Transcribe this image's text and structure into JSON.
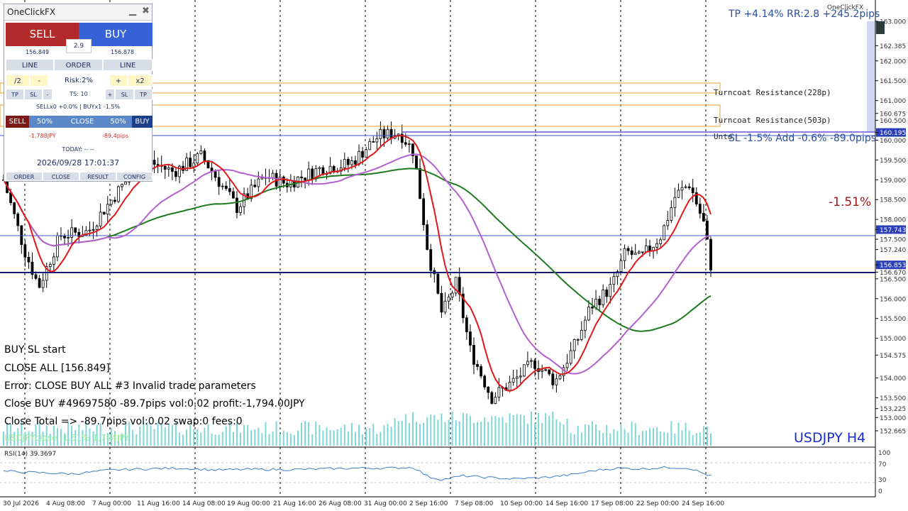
{
  "panel": {
    "title": "OneClickFX",
    "sell_label": "SELL",
    "buy_label": "BUY",
    "spread": "2.9",
    "sell_price": "156.849",
    "buy_price": "156.878",
    "line_left": "LINE",
    "order_label": "ORDER",
    "line_right": "LINE",
    "half_label": "/2",
    "minus_label": "-",
    "risk_label": "Risk:2%",
    "plus_label": "+",
    "double_label": "x2",
    "tp_left": "TP",
    "sl_left": "SL",
    "minus_small": "-",
    "ts_label": "TS: 10",
    "plus_small": "+",
    "sl_right": "SL",
    "tp_right": "TP",
    "positions_info": "SELLx0 +0.0% | BUYx1 -1.5%",
    "close_sell": "SELL",
    "close_50_left": "50%",
    "close_label": "CLOSE",
    "close_50_right": "50%",
    "close_buy": "BUY",
    "pl_left": "-1,788JPY",
    "pl_right": "-89.4pips",
    "today": "TODAY: -- --",
    "datetime": "2026/09/28  17:01:37",
    "tab_order": "ORDER",
    "tab_close": "CLOSE",
    "tab_result": "RESULT",
    "tab_config": "CONFIG"
  },
  "overlays": {
    "tp_info": "TP +4.14% RR:2.8 +245.2pips",
    "sl_info": "SL -1.5% Add -0.6% -89.0pips",
    "percent_change": "-1.51%",
    "symbol_tf": "USDJPY H4",
    "brand_small": "OneClickFX",
    "resistance_1": "Turncoat Resistance(228p)",
    "resistance_2": "Turncoat Resistance(503p)",
    "resistance_3": "Unto",
    "ghost_text": "USDJPYclose -1.51% 1,794JPY",
    "rsi_label": "RSI(14) 39.3697"
  },
  "log": [
    "BUY SL start",
    "CLOSE ALL [156.849]",
    "Error: CLOSE BUY ALL #3 Invalid trade parameters",
    "Close BUY #49697580 -89.7pips vol:0.02 profit:-1,794.00JPY",
    "Close Total => -89.7pips vol:0.02 swap:0 fees:0"
  ],
  "price_axis": [
    {
      "price": 163.0,
      "label": "163.000",
      "style": "normal"
    },
    {
      "price": 162.385,
      "label": "162.385",
      "style": "normal"
    },
    {
      "price": 162.0,
      "label": "162.000",
      "style": "normal"
    },
    {
      "price": 161.5,
      "label": "161.500",
      "style": "normal"
    },
    {
      "price": 161.0,
      "label": "161.000",
      "style": "normal"
    },
    {
      "price": 160.675,
      "label": "160.675",
      "style": "normal"
    },
    {
      "price": 160.5,
      "label": "160.500",
      "style": "normal"
    },
    {
      "price": 160.195,
      "label": "160.195",
      "style": "blue"
    },
    {
      "price": 160.0,
      "label": "160.000",
      "style": "normal"
    },
    {
      "price": 159.5,
      "label": "159.500",
      "style": "normal"
    },
    {
      "price": 159.0,
      "label": "159.000",
      "style": "normal"
    },
    {
      "price": 158.5,
      "label": "158.500",
      "style": "normal"
    },
    {
      "price": 158.0,
      "label": "158.000",
      "style": "normal"
    },
    {
      "price": 157.743,
      "label": "157.743",
      "style": "blue"
    },
    {
      "price": 157.5,
      "label": "157.500",
      "style": "normal"
    },
    {
      "price": 157.24,
      "label": "157.240",
      "style": "normal"
    },
    {
      "price": 156.853,
      "label": "156.853",
      "style": "blue"
    },
    {
      "price": 156.5,
      "label": "156.500",
      "style": "normal"
    },
    {
      "price": 156.67,
      "label": "156.670",
      "style": "normal"
    },
    {
      "price": 156.0,
      "label": "156.000",
      "style": "normal"
    },
    {
      "price": 155.5,
      "label": "155.500",
      "style": "normal"
    },
    {
      "price": 155.0,
      "label": "155.000",
      "style": "normal"
    },
    {
      "price": 154.575,
      "label": "154.575",
      "style": "normal"
    },
    {
      "price": 154.0,
      "label": "154.000",
      "style": "normal"
    },
    {
      "price": 153.5,
      "label": "153.500",
      "style": "normal"
    },
    {
      "price": 153.225,
      "label": "153.225",
      "style": "normal"
    },
    {
      "price": 153.0,
      "label": "153.000",
      "style": "normal"
    },
    {
      "price": 152.665,
      "label": "152.665",
      "style": "normal"
    }
  ],
  "rsi_axis": [
    "100",
    "70",
    "30",
    "0"
  ],
  "time_axis": [
    "30 Jul 2026",
    "4 Aug 08:00",
    "7 Aug 00:00",
    "11 Aug 16:00",
    "14 Aug 08:00",
    "19 Aug 00:00",
    "21 Aug 16:00",
    "26 Aug 08:00",
    "31 Aug 00:00",
    "2 Sep 16:00",
    "7 Sep 08:00",
    "10 Sep 00:00",
    "14 Sep 16:00",
    "17 Sep 08:00",
    "22 Sep 00:00",
    "24 Sep 16:00"
  ],
  "colors": {
    "sell": "#b22a2a",
    "buy": "#3663d8",
    "ma_red": "#e01818",
    "ma_green": "#1e7a1e",
    "ma_purple": "#b45fd0",
    "volume": "#7fd6d6",
    "rsi": "#3a7ec8",
    "resistance": "#e8a030"
  },
  "chart_data": {
    "type": "candlestick",
    "symbol": "USDJPY",
    "timeframe": "H4",
    "ylim": [
      152.665,
      163.0
    ],
    "levels": {
      "entry": 157.743,
      "current": 156.853,
      "upper": 160.195
    },
    "close_path": [
      [
        0,
        159.0
      ],
      [
        0.03,
        157.2
      ],
      [
        0.05,
        156.3
      ],
      [
        0.08,
        157.6
      ],
      [
        0.12,
        157.7
      ],
      [
        0.14,
        158.2
      ],
      [
        0.17,
        158.9
      ],
      [
        0.2,
        159.5
      ],
      [
        0.24,
        159.2
      ],
      [
        0.28,
        159.6
      ],
      [
        0.33,
        158.3
      ],
      [
        0.37,
        159.1
      ],
      [
        0.4,
        158.9
      ],
      [
        0.45,
        159.3
      ],
      [
        0.49,
        159.4
      ],
      [
        0.53,
        160.1
      ],
      [
        0.56,
        160.2
      ],
      [
        0.58,
        159.7
      ],
      [
        0.6,
        157.2
      ],
      [
        0.62,
        155.6
      ],
      [
        0.64,
        156.4
      ],
      [
        0.66,
        154.7
      ],
      [
        0.69,
        153.5
      ],
      [
        0.72,
        153.9
      ],
      [
        0.75,
        154.4
      ],
      [
        0.78,
        153.9
      ],
      [
        0.81,
        154.9
      ],
      [
        0.83,
        155.8
      ],
      [
        0.86,
        156.3
      ],
      [
        0.88,
        157.2
      ],
      [
        0.9,
        157.0
      ],
      [
        0.93,
        157.6
      ],
      [
        0.95,
        158.6
      ],
      [
        0.97,
        158.9
      ],
      [
        0.99,
        157.9
      ],
      [
        1.0,
        156.85
      ]
    ],
    "rsi_path": [
      [
        0,
        52
      ],
      [
        0.05,
        48
      ],
      [
        0.1,
        45
      ],
      [
        0.15,
        55
      ],
      [
        0.2,
        58
      ],
      [
        0.25,
        60
      ],
      [
        0.3,
        55
      ],
      [
        0.35,
        57
      ],
      [
        0.4,
        56
      ],
      [
        0.45,
        58
      ],
      [
        0.5,
        60
      ],
      [
        0.54,
        60
      ],
      [
        0.58,
        62
      ],
      [
        0.6,
        38
      ],
      [
        0.62,
        30
      ],
      [
        0.65,
        40
      ],
      [
        0.68,
        36
      ],
      [
        0.72,
        32
      ],
      [
        0.76,
        35
      ],
      [
        0.8,
        42
      ],
      [
        0.84,
        55
      ],
      [
        0.87,
        60
      ],
      [
        0.9,
        58
      ],
      [
        0.94,
        62
      ],
      [
        0.97,
        60
      ],
      [
        1.0,
        39
      ]
    ]
  }
}
